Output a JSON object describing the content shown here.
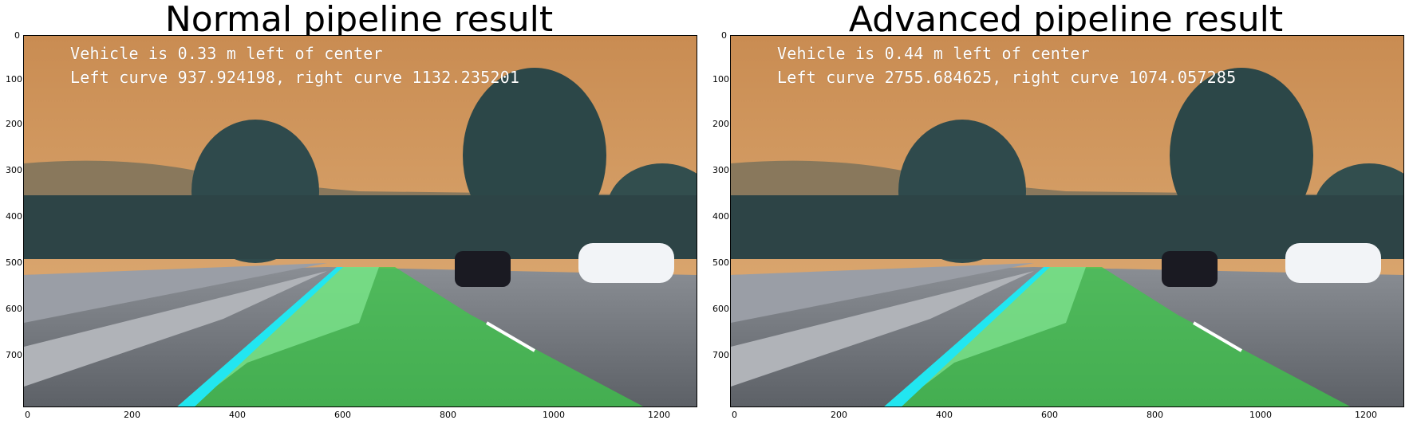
{
  "panels": [
    {
      "title": "Normal pipeline result",
      "overlay": {
        "line1": "Vehicle is 0.33 m left of center",
        "line2": "Left curve 937.924198, right curve 1132.235201"
      }
    },
    {
      "title": "Advanced pipeline result",
      "overlay": {
        "line1": "Vehicle is 0.44 m left of center",
        "line2": "Left curve 2755.684625, right curve 1074.057285"
      }
    }
  ],
  "axes": {
    "x_ticks": [
      "0",
      "200",
      "400",
      "600",
      "800",
      "1000",
      "1200"
    ],
    "y_ticks": [
      "0",
      "100",
      "200",
      "300",
      "400",
      "500",
      "600",
      "700"
    ],
    "x_range": [
      0,
      1280
    ],
    "y_range": [
      0,
      720
    ]
  },
  "colors": {
    "sky": "#d69a5e",
    "lane_fill": "#3cc84a",
    "lane_line": "#22e6f0",
    "road": "#7b7f86"
  }
}
